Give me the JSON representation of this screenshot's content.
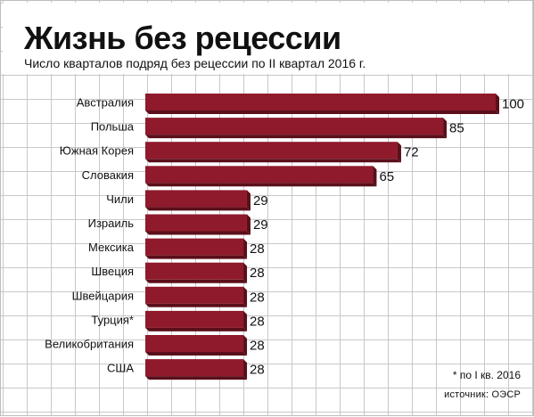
{
  "chart_data": {
    "type": "bar",
    "orientation": "horizontal",
    "title": "Жизнь без рецессии",
    "subtitle": "Число кварталов подряд без рецессии по II квартал 2016 г.",
    "categories": [
      "Австралия",
      "Польша",
      "Южная Корея",
      "Словакия",
      "Чили",
      "Израиль",
      "Мексика",
      "Швеция",
      "Швейцария",
      "Турция*",
      "Великобритания",
      "США"
    ],
    "values": [
      100,
      85,
      72,
      65,
      29,
      29,
      28,
      28,
      28,
      28,
      28,
      28
    ],
    "data_labels": [
      "100",
      "85",
      "72",
      "65",
      "29",
      "29",
      "28",
      "28",
      "28",
      "28",
      "28",
      "28"
    ],
    "xlim": [
      0,
      100
    ],
    "grid": true,
    "colors": {
      "bar": "#8e1a2b",
      "bar_dark": "#5a0f1a",
      "grid": "#c8c8c8",
      "text": "#111111"
    }
  },
  "notes": {
    "footnote": "* по I кв. 2016",
    "source": "источник: ОЭСР"
  }
}
